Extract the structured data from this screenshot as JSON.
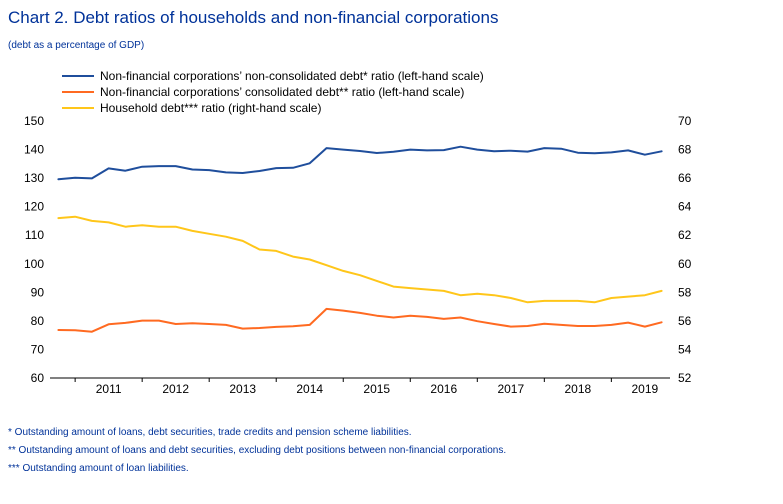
{
  "header": {
    "title": "Chart 2. Debt ratios of households and non-financial corporations",
    "subtitle": "(debt as a percentage of GDP)"
  },
  "colors": {
    "text": "#003299",
    "nfc_non_consolidated": "#1f4e9c",
    "nfc_consolidated": "#ff6a21",
    "household": "#ffc61a"
  },
  "chart_data": {
    "type": "line",
    "legend_position": "top",
    "grid": false,
    "x_labels": [
      "2011",
      "2012",
      "2013",
      "2014",
      "2015",
      "2016",
      "2017",
      "2018",
      "2019"
    ],
    "x_range": [
      2010.625,
      2019.875
    ],
    "y_left": {
      "range": [
        60,
        150
      ],
      "ticks": [
        60,
        70,
        80,
        90,
        100,
        110,
        120,
        130,
        140,
        150
      ]
    },
    "y_right": {
      "range": [
        52,
        70
      ],
      "ticks": [
        52,
        54,
        56,
        58,
        60,
        62,
        64,
        66,
        68,
        70
      ]
    },
    "x": [
      2010.75,
      2011.0,
      2011.25,
      2011.5,
      2011.75,
      2012.0,
      2012.25,
      2012.5,
      2012.75,
      2013.0,
      2013.25,
      2013.5,
      2013.75,
      2014.0,
      2014.25,
      2014.5,
      2014.75,
      2015.0,
      2015.25,
      2015.5,
      2015.75,
      2016.0,
      2016.25,
      2016.5,
      2016.75,
      2017.0,
      2017.25,
      2017.5,
      2017.75,
      2018.0,
      2018.25,
      2018.5,
      2018.75,
      2019.0,
      2019.25,
      2019.5,
      2019.75
    ],
    "series": [
      {
        "name": "Non-financial corporations’ non-consolidated debt* ratio (left-hand scale)",
        "axis": "left",
        "color": "#1f4e9c",
        "values": [
          129.6,
          130.1,
          129.9,
          133.4,
          132.6,
          134.0,
          134.2,
          134.2,
          133.0,
          132.8,
          132.0,
          131.8,
          132.5,
          133.5,
          133.6,
          135.2,
          140.5,
          140.0,
          139.5,
          138.8,
          139.2,
          140.0,
          139.7,
          139.8,
          141.0,
          140.0,
          139.4,
          139.6,
          139.3,
          140.5,
          140.3,
          138.9,
          138.7,
          139.0,
          139.7,
          138.2,
          139.4
        ]
      },
      {
        "name": "Non-financial corporations’ consolidated debt** ratio (left-hand scale)",
        "axis": "left",
        "color": "#ff6a21",
        "values": [
          76.8,
          76.7,
          76.2,
          78.8,
          79.3,
          80.1,
          80.1,
          78.9,
          79.2,
          78.9,
          78.6,
          77.3,
          77.5,
          77.9,
          78.1,
          78.6,
          84.2,
          83.6,
          82.8,
          81.8,
          81.2,
          81.8,
          81.4,
          80.7,
          81.2,
          79.9,
          78.9,
          78.0,
          78.2,
          79.0,
          78.6,
          78.2,
          78.2,
          78.6,
          79.4,
          78.0,
          79.5
        ]
      },
      {
        "name": "Household debt*** ratio (right-hand scale)",
        "axis": "right",
        "color": "#ffc61a",
        "values": [
          63.2,
          63.3,
          63.0,
          62.9,
          62.6,
          62.7,
          62.6,
          62.6,
          62.3,
          62.1,
          61.9,
          61.6,
          61.0,
          60.9,
          60.5,
          60.3,
          59.9,
          59.5,
          59.2,
          58.8,
          58.4,
          58.3,
          58.2,
          58.1,
          57.8,
          57.9,
          57.8,
          57.6,
          57.3,
          57.4,
          57.4,
          57.4,
          57.3,
          57.6,
          57.7,
          57.8,
          58.1
        ]
      }
    ]
  },
  "notes": [
    "* Outstanding amount of loans, debt securities, trade credits and pension scheme liabilities.",
    "** Outstanding amount of loans and debt securities, excluding debt positions between non-financial corporations.",
    "*** Outstanding amount of loan liabilities."
  ]
}
